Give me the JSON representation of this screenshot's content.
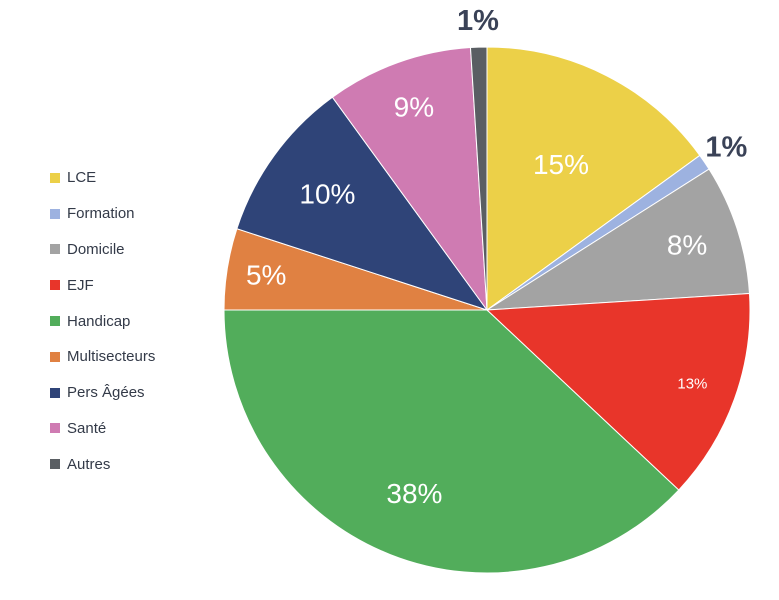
{
  "chart_data": {
    "type": "pie",
    "categories": [
      "LCE",
      "Formation",
      "Domicile",
      "EJF",
      "Handicap",
      "Multisecteurs",
      "Pers Âgées",
      "Santé",
      "Autres"
    ],
    "values": [
      15,
      1,
      8,
      13,
      38,
      5,
      10,
      9,
      1
    ],
    "labels": [
      "15%",
      "1%",
      "8%",
      "13%",
      "38%",
      "5%",
      "10%",
      "9%",
      "1%"
    ],
    "colors": [
      "#ecd048",
      "#9db2e0",
      "#a3a3a3",
      "#e8352a",
      "#52ad5b",
      "#e08142",
      "#2f4478",
      "#cf7bb2",
      "#5a5e63"
    ],
    "legend_position": "left",
    "start_angle_deg": 0
  }
}
